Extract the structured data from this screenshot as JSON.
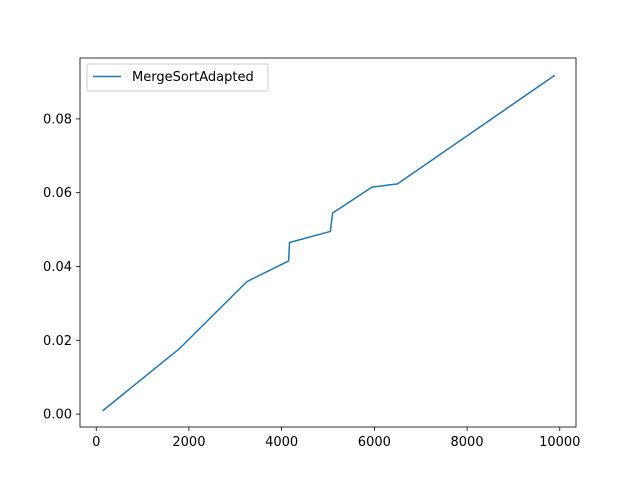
{
  "chart_data": {
    "type": "line",
    "title": "",
    "xlabel": "",
    "ylabel": "",
    "xlim": [
      -350,
      10350
    ],
    "ylim": [
      -0.0035,
      0.0965
    ],
    "xticks": [
      0,
      2000,
      4000,
      6000,
      8000,
      10000
    ],
    "xtick_labels": [
      "0",
      "2000",
      "4000",
      "6000",
      "8000",
      "10000"
    ],
    "yticks": [
      0.0,
      0.02,
      0.04,
      0.06,
      0.08
    ],
    "ytick_labels": [
      "0.00",
      "0.02",
      "0.04",
      "0.06",
      "0.08"
    ],
    "grid": false,
    "legend_position": "top-left",
    "series": [
      {
        "name": "MergeSortAdapted",
        "color": "#1f77b4",
        "x": [
          150,
          1800,
          3250,
          4150,
          4170,
          5050,
          5100,
          5950,
          6500,
          9880
        ],
        "y": [
          0.001,
          0.0178,
          0.0359,
          0.0415,
          0.0465,
          0.0495,
          0.0545,
          0.0615,
          0.0624,
          0.0917
        ]
      }
    ]
  }
}
